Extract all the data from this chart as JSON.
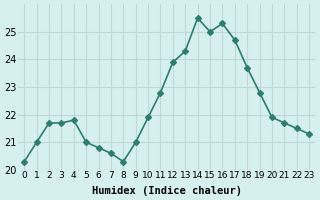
{
  "x": [
    0,
    1,
    2,
    3,
    4,
    5,
    6,
    7,
    8,
    9,
    10,
    11,
    12,
    13,
    14,
    15,
    16,
    17,
    18,
    19,
    20,
    21,
    22,
    23
  ],
  "y": [
    20.3,
    21.0,
    21.7,
    21.7,
    21.8,
    21.0,
    20.8,
    20.6,
    20.3,
    21.0,
    21.9,
    22.8,
    23.9,
    24.3,
    25.5,
    25.0,
    25.3,
    24.7,
    23.7,
    22.8,
    21.9,
    21.7,
    21.5,
    21.3
  ],
  "line_color": "#2e7d6e",
  "bg_color": "#d6f0f0",
  "grid_color": "#c0d8d8",
  "xlabel": "Humidex (Indice chaleur)",
  "ylabel": "",
  "title": "",
  "ylim": [
    20.0,
    26.0
  ],
  "xlim": [
    -0.5,
    23.5
  ],
  "yticks": [
    20,
    21,
    22,
    23,
    24,
    25
  ],
  "xtick_labels": [
    "0",
    "1",
    "2",
    "3",
    "4",
    "5",
    "6",
    "7",
    "8",
    "9",
    "10",
    "11",
    "12",
    "13",
    "14",
    "15",
    "16",
    "17",
    "18",
    "19",
    "20",
    "21",
    "22",
    "23"
  ],
  "marker": "D",
  "marker_size": 3,
  "line_width": 1.2
}
